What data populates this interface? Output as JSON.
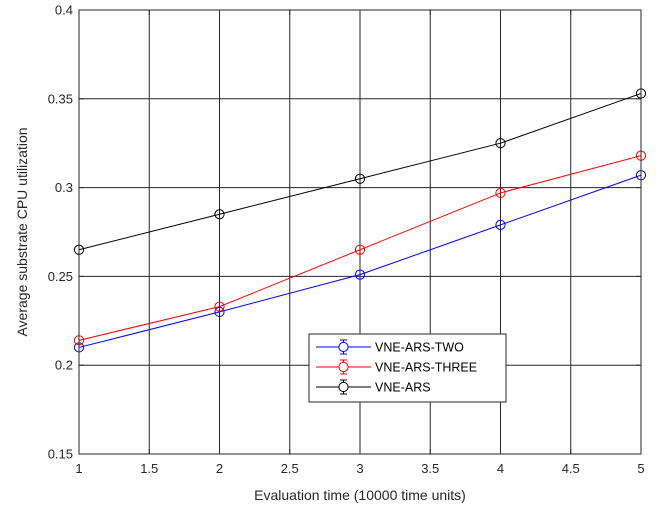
{
  "chart_data": {
    "type": "line",
    "title": "",
    "xlabel": "Evaluation time (10000 time units)",
    "ylabel": "Average substrate CPU utilization",
    "xlim": [
      1,
      5
    ],
    "ylim": [
      0.15,
      0.4
    ],
    "xticks": [
      1,
      1.5,
      2,
      2.5,
      3,
      3.5,
      4,
      4.5,
      5
    ],
    "xtick_labels": [
      "1",
      "1.5",
      "2",
      "2.5",
      "3",
      "3.5",
      "4",
      "4.5",
      "5"
    ],
    "yticks": [
      0.15,
      0.2,
      0.25,
      0.3,
      0.35,
      0.4
    ],
    "ytick_labels": [
      "0.15",
      "0.2",
      "0.25",
      "0.3",
      "0.35",
      "0.4"
    ],
    "grid": true,
    "legend_position": "center-right",
    "x": [
      1,
      2,
      3,
      4,
      5
    ],
    "series": [
      {
        "name": "VNE-ARS-TWO",
        "color": "#0000ff",
        "marker": "circle",
        "values": [
          0.21,
          0.23,
          0.251,
          0.279,
          0.307
        ]
      },
      {
        "name": "VNE-ARS-THREE",
        "color": "#ff0000",
        "marker": "circle",
        "values": [
          0.214,
          0.233,
          0.265,
          0.297,
          0.318
        ]
      },
      {
        "name": "VNE-ARS",
        "color": "#000000",
        "marker": "circle",
        "values": [
          0.265,
          0.285,
          0.305,
          0.325,
          0.353
        ]
      }
    ]
  }
}
